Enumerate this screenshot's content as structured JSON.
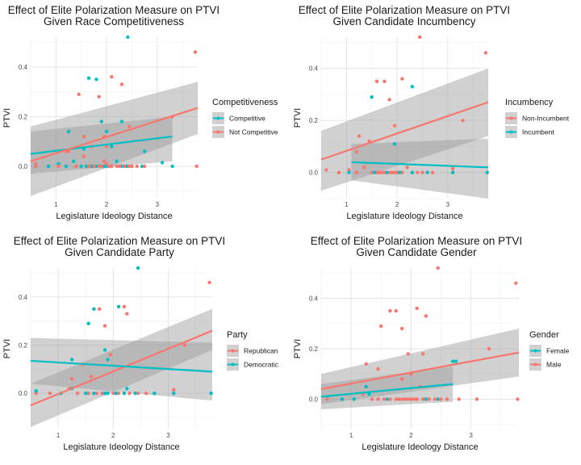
{
  "chart_data": [
    {
      "type": "scatter",
      "title": "Effect of Elite Polarization Measure on PTVI",
      "subtitle": "Given Race Competitiveness",
      "xlabel": "Legislature Ideology Distance",
      "ylabel": "PTVI",
      "xlim": [
        0.5,
        3.8
      ],
      "ylim": [
        -0.13,
        0.52
      ],
      "xticks": [
        1,
        2,
        3
      ],
      "yticks": [
        0.0,
        0.2,
        0.4
      ],
      "grid": true,
      "legend": {
        "title": "Competitiveness",
        "position": "right"
      },
      "series": [
        {
          "name": "Competitive",
          "color": "#00BFC4",
          "x": [
            0.6,
            0.85,
            1.05,
            1.2,
            1.35,
            1.5,
            1.6,
            1.65,
            1.7,
            1.75,
            1.8,
            1.85,
            1.9,
            1.95,
            2.0,
            2.05,
            2.1,
            2.2,
            2.3,
            2.4,
            2.5,
            2.7,
            3.1,
            3.3,
            1.65,
            1.8,
            1.9,
            2.0,
            2.3,
            2.42,
            1.55,
            2.1,
            1.25,
            2.75
          ],
          "y": [
            0.0,
            0.0,
            0.01,
            0.0,
            0.02,
            0.0,
            0.0,
            0.0,
            0.0,
            0.0,
            0.0,
            0.0,
            0.0,
            0.0,
            0.0,
            0.0,
            0.0,
            0.02,
            0.0,
            0.0,
            0.0,
            0.0,
            0.015,
            0.0,
            0.355,
            0.35,
            0.18,
            0.14,
            0.18,
            0.52,
            0.07,
            0.08,
            0.14,
            0.06
          ],
          "fit": {
            "x": [
              0.5,
              3.3
            ],
            "y": [
              0.05,
              0.12
            ],
            "ci_lower": [
              -0.03,
              0.02
            ],
            "ci_upper": [
              0.14,
              0.2
            ]
          }
        },
        {
          "name": "Not Competitive",
          "color": "#F8766D",
          "x": [
            0.6,
            1.05,
            1.25,
            1.4,
            1.55,
            1.65,
            1.75,
            1.85,
            1.9,
            1.95,
            2.0,
            2.05,
            2.1,
            2.2,
            2.25,
            2.35,
            2.45,
            2.5,
            2.6,
            2.75,
            3.3,
            3.75,
            3.78,
            0.6,
            1.2,
            1.45,
            1.7,
            1.85,
            1.95,
            2.1,
            2.3,
            1.55,
            2.0,
            2.45
          ],
          "y": [
            0.01,
            0.0,
            0.06,
            0.0,
            0.04,
            0.0,
            0.0,
            0.0,
            0.0,
            0.02,
            0.01,
            0.0,
            0.0,
            0.0,
            0.0,
            0.0,
            0.0,
            0.0,
            0.0,
            0.0,
            0.2,
            0.46,
            0.0,
            0.0,
            0.06,
            0.29,
            0.08,
            0.28,
            0.12,
            0.36,
            0.33,
            0.12,
            0.08,
            0.16
          ],
          "fit": {
            "x": [
              0.5,
              3.8
            ],
            "y": [
              0.02,
              0.235
            ],
            "ci_lower": [
              -0.12,
              0.13
            ],
            "ci_upper": [
              0.16,
              0.34
            ]
          }
        }
      ]
    },
    {
      "type": "scatter",
      "title": "Effect of Elite Polarization Measure on PTVI",
      "subtitle": "Given Candidate Incumbency",
      "xlabel": "Legislature Ideology Distance",
      "ylabel": "PTVI",
      "xlim": [
        0.5,
        3.8
      ],
      "ylim": [
        -0.1,
        0.52
      ],
      "xticks": [
        1,
        2,
        3
      ],
      "yticks": [
        0.0,
        0.2,
        0.4
      ],
      "grid": true,
      "legend": {
        "title": "Incumbency",
        "position": "right"
      },
      "series": [
        {
          "name": "Non-Incumbent",
          "color": "#F8766D",
          "x": [
            0.6,
            0.85,
            1.05,
            1.2,
            1.35,
            1.5,
            1.6,
            1.65,
            1.7,
            1.75,
            1.8,
            1.85,
            1.9,
            1.95,
            2.0,
            2.05,
            2.1,
            2.2,
            2.3,
            2.4,
            2.5,
            2.7,
            3.1,
            3.3,
            3.75,
            3.78,
            1.25,
            1.45,
            1.6,
            1.75,
            1.85,
            1.95,
            2.1,
            2.45,
            1.2
          ],
          "y": [
            0.01,
            0.0,
            0.01,
            0.0,
            0.02,
            0.0,
            0.0,
            0.0,
            0.0,
            0.0,
            0.0,
            0.0,
            0.0,
            0.0,
            0.0,
            0.0,
            0.0,
            0.02,
            0.0,
            0.0,
            0.0,
            0.0,
            0.015,
            0.2,
            0.46,
            0.0,
            0.14,
            0.12,
            0.35,
            0.35,
            0.28,
            0.18,
            0.36,
            0.52,
            0.08
          ],
          "fit": {
            "x": [
              0.5,
              3.8
            ],
            "y": [
              0.05,
              0.27
            ],
            "ci_lower": [
              -0.07,
              0.14
            ],
            "ci_upper": [
              0.16,
              0.4
            ]
          }
        },
        {
          "name": "Incumbent",
          "color": "#00BFC4",
          "x": [
            1.05,
            1.55,
            1.8,
            2.05,
            2.3,
            2.6,
            3.1,
            3.78,
            1.5,
            1.95,
            2.3
          ],
          "y": [
            0.0,
            0.0,
            0.0,
            0.0,
            0.0,
            0.0,
            0.0,
            0.0,
            0.29,
            0.11,
            0.33
          ],
          "fit": {
            "x": [
              1.1,
              3.8
            ],
            "y": [
              0.04,
              0.02
            ],
            "ci_lower": [
              -0.03,
              -0.1
            ],
            "ci_upper": [
              0.11,
              0.13
            ]
          }
        }
      ]
    },
    {
      "type": "scatter",
      "title": "Effect of Elite Polarization Measure on PTVI",
      "subtitle": "Given Candidate Party",
      "xlabel": "Legislature Ideology Distance",
      "ylabel": "PTVI",
      "xlim": [
        0.5,
        3.8
      ],
      "ylim": [
        -0.15,
        0.52
      ],
      "xticks": [
        1,
        2,
        3
      ],
      "yticks": [
        0.0,
        0.2,
        0.4
      ],
      "grid": true,
      "legend": {
        "title": "Party",
        "position": "right"
      },
      "series": [
        {
          "name": "Republican",
          "color": "#F8766D",
          "x": [
            0.6,
            0.85,
            1.2,
            1.35,
            1.55,
            1.7,
            1.8,
            1.9,
            2.0,
            2.1,
            2.2,
            2.3,
            2.45,
            2.6,
            2.75,
            3.1,
            3.3,
            3.75,
            3.78,
            1.25,
            1.6,
            1.75,
            1.85,
            1.95,
            2.2,
            2.25,
            1.45
          ],
          "y": [
            0.0,
            0.0,
            0.02,
            0.0,
            0.0,
            0.0,
            0.0,
            0.0,
            0.0,
            0.0,
            0.0,
            0.0,
            0.0,
            0.0,
            0.0,
            0.015,
            0.2,
            0.46,
            0.0,
            0.06,
            0.07,
            0.35,
            0.28,
            0.16,
            0.36,
            0.33,
            0.12
          ],
          "fit": {
            "x": [
              0.5,
              3.8
            ],
            "y": [
              -0.05,
              0.26
            ],
            "ci_lower": [
              -0.14,
              0.18
            ],
            "ci_upper": [
              0.04,
              0.35
            ]
          }
        },
        {
          "name": "Democratic",
          "color": "#00BFC4",
          "x": [
            0.6,
            1.05,
            1.25,
            1.5,
            1.65,
            1.85,
            1.9,
            2.05,
            2.25,
            2.4,
            2.75,
            3.1,
            3.78,
            1.55,
            1.65,
            1.85,
            2.1,
            2.45,
            1.9,
            1.25,
            2.2
          ],
          "y": [
            0.01,
            0.0,
            0.02,
            0.0,
            0.0,
            0.0,
            0.0,
            0.0,
            0.02,
            0.0,
            0.0,
            0.0,
            0.0,
            0.29,
            0.35,
            0.18,
            0.36,
            0.52,
            0.14,
            0.14,
            0.0
          ],
          "fit": {
            "x": [
              0.5,
              3.8
            ],
            "y": [
              0.135,
              0.09
            ],
            "ci_lower": [
              0.04,
              -0.03
            ],
            "ci_upper": [
              0.23,
              0.21
            ]
          }
        }
      ]
    },
    {
      "type": "scatter",
      "title": "Effect of Elite Polarization Measure on PTVI",
      "subtitle": "Given Candidate Gender",
      "xlabel": "Legislature Ideology Distance",
      "ylabel": "PTVI",
      "xlim": [
        0.5,
        3.8
      ],
      "ylim": [
        -0.12,
        0.52
      ],
      "xticks": [
        1,
        2,
        3
      ],
      "yticks": [
        0.0,
        0.2,
        0.4
      ],
      "grid": true,
      "legend": {
        "title": "Gender",
        "position": "right"
      },
      "series": [
        {
          "name": "Female",
          "color": "#00BFC4",
          "x": [
            0.6,
            0.85,
            1.05,
            1.3,
            1.6,
            1.9,
            2.25,
            2.45,
            2.75,
            1.25,
            2.7
          ],
          "y": [
            0.01,
            0.0,
            0.0,
            0.02,
            0.0,
            0.0,
            0.0,
            0.0,
            0.15,
            0.05,
            0.15
          ],
          "fit": {
            "x": [
              0.5,
              2.7
            ],
            "y": [
              0.01,
              0.06
            ],
            "ci_lower": [
              -0.04,
              -0.01
            ],
            "ci_upper": [
              0.06,
              0.13
            ]
          }
        },
        {
          "name": "Male",
          "color": "#F8766D",
          "x": [
            0.6,
            1.2,
            1.35,
            1.45,
            1.55,
            1.65,
            1.75,
            1.8,
            1.85,
            1.9,
            1.95,
            2.0,
            2.05,
            2.1,
            2.2,
            2.3,
            2.4,
            2.5,
            2.6,
            2.8,
            3.1,
            3.3,
            3.75,
            3.78,
            1.25,
            1.5,
            1.65,
            1.75,
            1.85,
            1.95,
            2.1,
            2.2,
            2.25,
            2.45,
            1.45,
            2.0,
            2.15,
            1.85
          ],
          "y": [
            0.0,
            0.02,
            0.0,
            0.0,
            0.0,
            0.0,
            0.0,
            0.0,
            0.0,
            0.0,
            0.0,
            0.0,
            0.0,
            0.0,
            0.0,
            0.0,
            0.0,
            0.0,
            0.0,
            0.0,
            0.0,
            0.2,
            0.46,
            0.0,
            0.14,
            0.29,
            0.35,
            0.35,
            0.28,
            0.18,
            0.36,
            0.18,
            0.33,
            0.52,
            0.12,
            0.1,
            0.05,
            0.08
          ],
          "fit": {
            "x": [
              0.5,
              3.8
            ],
            "y": [
              0.04,
              0.185
            ],
            "ci_lower": [
              -0.02,
              0.09
            ],
            "ci_upper": [
              0.1,
              0.28
            ]
          }
        }
      ]
    }
  ]
}
